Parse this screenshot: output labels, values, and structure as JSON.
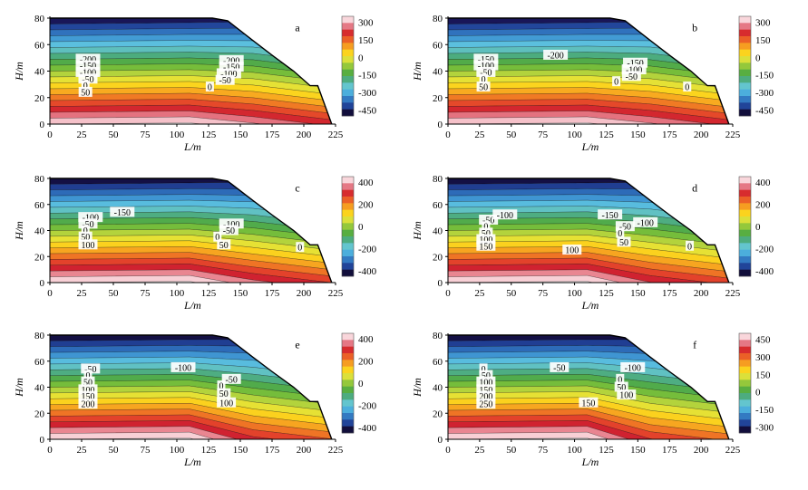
{
  "figure": {
    "xlabel": "L/m",
    "ylabel": "H/m"
  },
  "chart_data": [
    {
      "type": "heatmap",
      "panel_label": "a",
      "xlabel": "L/m",
      "ylabel": "H/m",
      "xlim": [
        0,
        225
      ],
      "ylim": [
        0,
        80
      ],
      "x_ticks": [
        0,
        25,
        50,
        75,
        100,
        125,
        150,
        175,
        200,
        225
      ],
      "y_ticks": [
        0,
        20,
        40,
        60,
        80
      ],
      "colorbar": {
        "min": -500,
        "max": 350,
        "ticks": [
          300,
          150,
          0,
          -150,
          -300,
          -450
        ]
      },
      "field": {
        "top": -480,
        "bottom": 330,
        "shift": 0
      },
      "contour_labels": [
        {
          "text": "-200",
          "x": 30,
          "y": 49,
          "value": -200
        },
        {
          "text": "-150",
          "x": 30,
          "y": 44,
          "value": -150
        },
        {
          "text": "-100",
          "x": 30,
          "y": 39,
          "value": -100
        },
        {
          "text": "-50",
          "x": 30,
          "y": 34,
          "value": -50
        },
        {
          "text": "0",
          "x": 28,
          "y": 29,
          "value": 0
        },
        {
          "text": "50",
          "x": 28,
          "y": 24,
          "value": 50
        },
        {
          "text": "-200",
          "x": 143,
          "y": 48,
          "value": -200
        },
        {
          "text": "-150",
          "x": 143,
          "y": 43,
          "value": -150
        },
        {
          "text": "-100",
          "x": 141,
          "y": 38,
          "value": -100
        },
        {
          "text": "-50",
          "x": 138,
          "y": 33,
          "value": -50
        },
        {
          "text": "0",
          "x": 126,
          "y": 28,
          "value": 0
        }
      ]
    },
    {
      "type": "heatmap",
      "panel_label": "b",
      "xlabel": "L/m",
      "ylabel": "H/m",
      "xlim": [
        0,
        225
      ],
      "ylim": [
        0,
        80
      ],
      "x_ticks": [
        0,
        25,
        50,
        75,
        100,
        125,
        150,
        175,
        200,
        225
      ],
      "y_ticks": [
        0,
        20,
        40,
        60,
        80
      ],
      "colorbar": {
        "min": -500,
        "max": 350,
        "ticks": [
          300,
          150,
          0,
          -150,
          -300,
          -450
        ]
      },
      "field": {
        "top": -480,
        "bottom": 330,
        "shift": 0
      },
      "contour_labels": [
        {
          "text": "-150",
          "x": 30,
          "y": 49,
          "value": -150
        },
        {
          "text": "-100",
          "x": 30,
          "y": 44,
          "value": -100
        },
        {
          "text": "-50",
          "x": 30,
          "y": 39,
          "value": -50
        },
        {
          "text": "0",
          "x": 28,
          "y": 34,
          "value": 0
        },
        {
          "text": "50",
          "x": 28,
          "y": 28,
          "value": 50
        },
        {
          "text": "-200",
          "x": 85,
          "y": 52,
          "value": -200
        },
        {
          "text": "-150",
          "x": 148,
          "y": 46,
          "value": -150
        },
        {
          "text": "-100",
          "x": 147,
          "y": 41,
          "value": -100
        },
        {
          "text": "-50",
          "x": 145,
          "y": 36,
          "value": -50
        },
        {
          "text": "0",
          "x": 133,
          "y": 32,
          "value": 0
        },
        {
          "text": "0",
          "x": 189,
          "y": 28,
          "value": 0
        }
      ]
    },
    {
      "type": "heatmap",
      "panel_label": "c",
      "xlabel": "L/m",
      "ylabel": "H/m",
      "xlim": [
        0,
        225
      ],
      "ylim": [
        0,
        80
      ],
      "x_ticks": [
        0,
        25,
        50,
        75,
        100,
        125,
        150,
        175,
        200,
        225
      ],
      "y_ticks": [
        0,
        20,
        40,
        60,
        80
      ],
      "colorbar": {
        "min": -450,
        "max": 450,
        "ticks": [
          400,
          200,
          0,
          -200,
          -400
        ]
      },
      "field": {
        "top": -440,
        "bottom": 440,
        "shift": 4
      },
      "contour_labels": [
        {
          "text": "-100",
          "x": 32,
          "y": 50,
          "value": -100
        },
        {
          "text": "-50",
          "x": 30,
          "y": 45,
          "value": -50
        },
        {
          "text": "0",
          "x": 28,
          "y": 40,
          "value": 0
        },
        {
          "text": "50",
          "x": 28,
          "y": 35,
          "value": 50
        },
        {
          "text": "100",
          "x": 30,
          "y": 29,
          "value": 100
        },
        {
          "text": "-150",
          "x": 57,
          "y": 54,
          "value": -150
        },
        {
          "text": "-100",
          "x": 143,
          "y": 45,
          "value": -100
        },
        {
          "text": "-50",
          "x": 141,
          "y": 40,
          "value": -50
        },
        {
          "text": "0",
          "x": 132,
          "y": 35,
          "value": 0
        },
        {
          "text": "50",
          "x": 137,
          "y": 29,
          "value": 50
        },
        {
          "text": "0",
          "x": 197,
          "y": 27,
          "value": 0
        }
      ]
    },
    {
      "type": "heatmap",
      "panel_label": "d",
      "xlabel": "L/m",
      "ylabel": "H/m",
      "xlim": [
        0,
        225
      ],
      "ylim": [
        0,
        80
      ],
      "x_ticks": [
        0,
        25,
        50,
        75,
        100,
        125,
        150,
        175,
        200,
        225
      ],
      "y_ticks": [
        0,
        20,
        40,
        60,
        80
      ],
      "colorbar": {
        "min": -450,
        "max": 450,
        "ticks": [
          400,
          200,
          0,
          -200,
          -400
        ]
      },
      "field": {
        "top": -440,
        "bottom": 440,
        "shift": 6
      },
      "contour_labels": [
        {
          "text": "-50",
          "x": 32,
          "y": 48,
          "value": -50
        },
        {
          "text": "0",
          "x": 30,
          "y": 43,
          "value": 0
        },
        {
          "text": "50",
          "x": 30,
          "y": 38,
          "value": 50
        },
        {
          "text": "100",
          "x": 30,
          "y": 33,
          "value": 100
        },
        {
          "text": "150",
          "x": 30,
          "y": 28,
          "value": 150
        },
        {
          "text": "-100",
          "x": 45,
          "y": 52,
          "value": -100
        },
        {
          "text": "-150",
          "x": 128,
          "y": 52,
          "value": -150
        },
        {
          "text": "-100",
          "x": 156,
          "y": 46,
          "value": -100
        },
        {
          "text": "-50",
          "x": 140,
          "y": 43,
          "value": -50
        },
        {
          "text": "0",
          "x": 136,
          "y": 38,
          "value": 0
        },
        {
          "text": "50",
          "x": 139,
          "y": 31,
          "value": 50
        },
        {
          "text": "100",
          "x": 98,
          "y": 25,
          "value": 100
        },
        {
          "text": "0",
          "x": 191,
          "y": 28,
          "value": 0
        }
      ]
    },
    {
      "type": "heatmap",
      "panel_label": "e",
      "xlabel": "L/m",
      "ylabel": "H/m",
      "xlim": [
        0,
        225
      ],
      "ylim": [
        0,
        80
      ],
      "x_ticks": [
        0,
        25,
        50,
        75,
        100,
        125,
        150,
        175,
        200,
        225
      ],
      "y_ticks": [
        0,
        20,
        40,
        60,
        80
      ],
      "colorbar": {
        "min": -450,
        "max": 450,
        "ticks": [
          400,
          200,
          0,
          -200,
          -400
        ]
      },
      "field": {
        "top": -440,
        "bottom": 440,
        "shift": 10
      },
      "contour_labels": [
        {
          "text": "-50",
          "x": 32,
          "y": 54,
          "value": -50
        },
        {
          "text": "0",
          "x": 30,
          "y": 49,
          "value": 0
        },
        {
          "text": "50",
          "x": 30,
          "y": 44,
          "value": 50
        },
        {
          "text": "100",
          "x": 30,
          "y": 38,
          "value": 100
        },
        {
          "text": "150",
          "x": 30,
          "y": 33,
          "value": 150
        },
        {
          "text": "200",
          "x": 30,
          "y": 27,
          "value": 200
        },
        {
          "text": "-100",
          "x": 105,
          "y": 55,
          "value": -100
        },
        {
          "text": "-50",
          "x": 143,
          "y": 46,
          "value": -50
        },
        {
          "text": "0",
          "x": 135,
          "y": 41,
          "value": 0
        },
        {
          "text": "50",
          "x": 137,
          "y": 35,
          "value": 50
        },
        {
          "text": "100",
          "x": 139,
          "y": 28,
          "value": 100
        }
      ]
    },
    {
      "type": "heatmap",
      "panel_label": "f",
      "xlabel": "L/m",
      "ylabel": "H/m",
      "xlim": [
        0,
        225
      ],
      "ylim": [
        0,
        80
      ],
      "x_ticks": [
        0,
        25,
        50,
        75,
        100,
        125,
        150,
        175,
        200,
        225
      ],
      "y_ticks": [
        0,
        20,
        40,
        60,
        80
      ],
      "colorbar": {
        "min": -350,
        "max": 500,
        "ticks": [
          450,
          300,
          150,
          0,
          -150,
          -300
        ]
      },
      "field": {
        "top": -340,
        "bottom": 490,
        "shift": 12
      },
      "contour_labels": [
        {
          "text": "0",
          "x": 28,
          "y": 54,
          "value": 0
        },
        {
          "text": "50",
          "x": 30,
          "y": 49,
          "value": 50
        },
        {
          "text": "100",
          "x": 30,
          "y": 44,
          "value": 100
        },
        {
          "text": "150",
          "x": 30,
          "y": 38,
          "value": 150
        },
        {
          "text": "200",
          "x": 30,
          "y": 33,
          "value": 200
        },
        {
          "text": "250",
          "x": 30,
          "y": 27,
          "value": 250
        },
        {
          "text": "-50",
          "x": 88,
          "y": 55,
          "value": -50
        },
        {
          "text": "-100",
          "x": 146,
          "y": 55,
          "value": -100
        },
        {
          "text": "0",
          "x": 136,
          "y": 46,
          "value": 0
        },
        {
          "text": "50",
          "x": 137,
          "y": 40,
          "value": 50
        },
        {
          "text": "100",
          "x": 141,
          "y": 34,
          "value": 100
        },
        {
          "text": "150",
          "x": 111,
          "y": 28,
          "value": 150
        }
      ]
    }
  ]
}
